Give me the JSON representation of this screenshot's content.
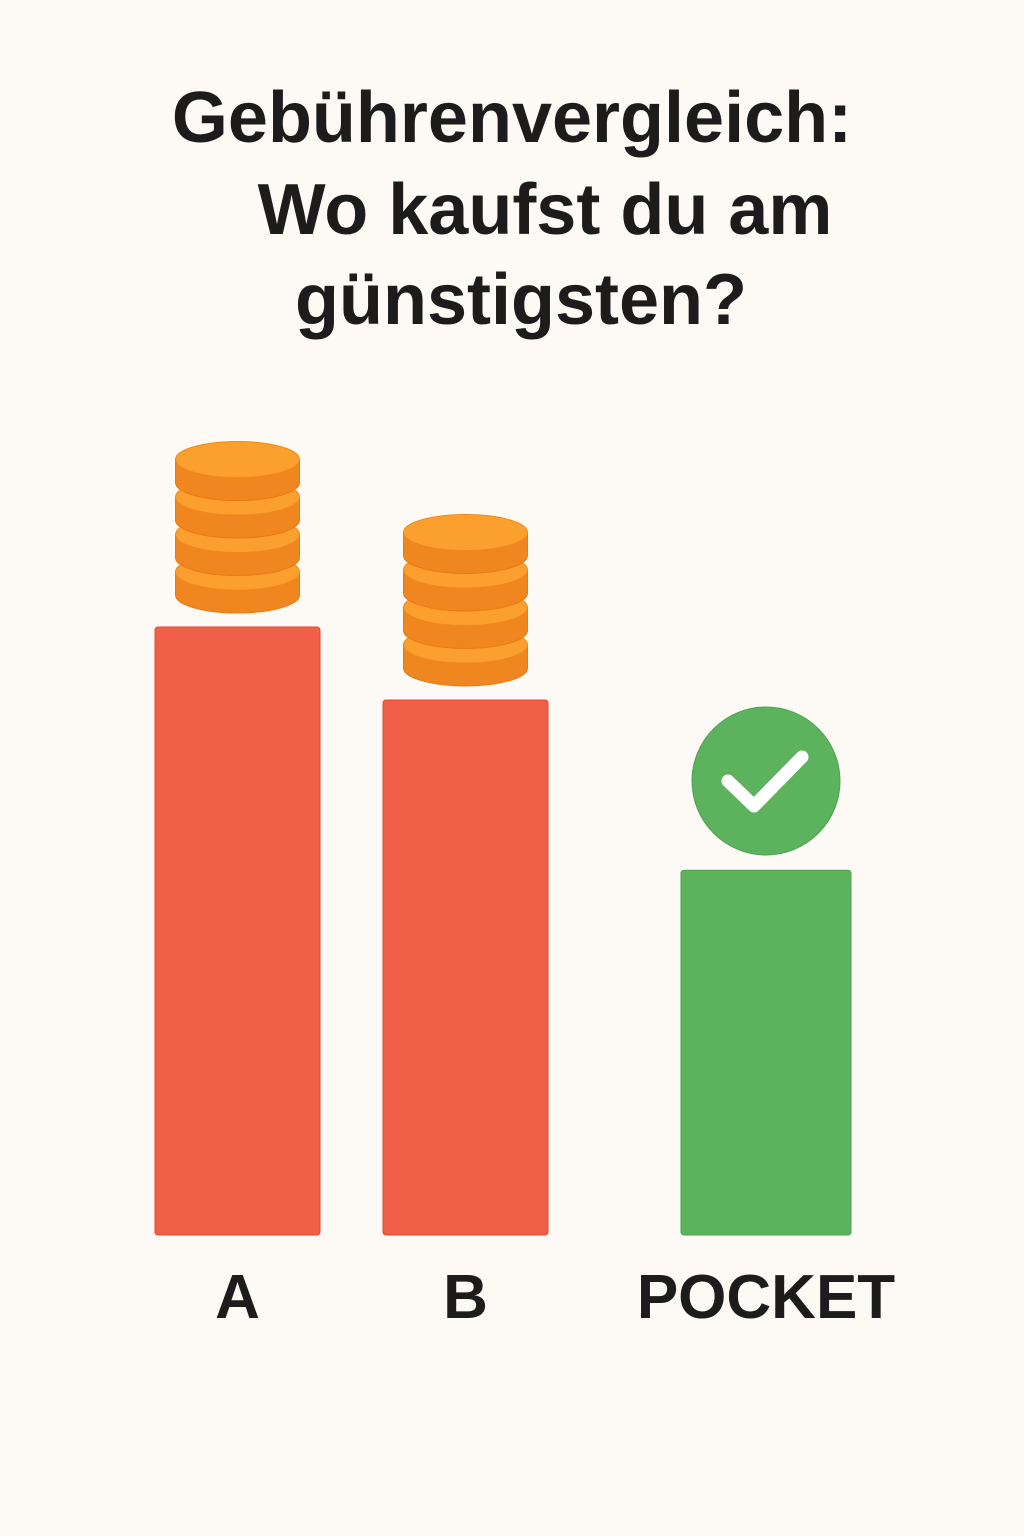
{
  "title": {
    "line1": "Gebührenvergleich:",
    "line2": "Wo kaufst du am",
    "line3": "günstigsten?"
  },
  "chart_data": {
    "type": "bar",
    "title": "Gebührenvergleich: Wo kaufst du am günstigsten?",
    "categories": [
      "A",
      "B",
      "POCKET"
    ],
    "values": [
      1.0,
      0.88,
      0.6
    ],
    "xlabel": "",
    "ylabel": "",
    "grid": false,
    "colors": {
      "A": "#f05f48",
      "B": "#f05f48",
      "POCKET": "#5cb25d"
    },
    "annotations": [
      {
        "category": "A",
        "icon": "coin-stack-icon",
        "coins": 4
      },
      {
        "category": "B",
        "icon": "coin-stack-icon",
        "coins": 4
      },
      {
        "category": "POCKET",
        "icon": "check-circle-icon"
      }
    ]
  },
  "colors": {
    "background": "#fdfaf5",
    "coin_top": "#fba02e",
    "coin_side": "#f0861f",
    "check_circle": "#5cb25d"
  }
}
